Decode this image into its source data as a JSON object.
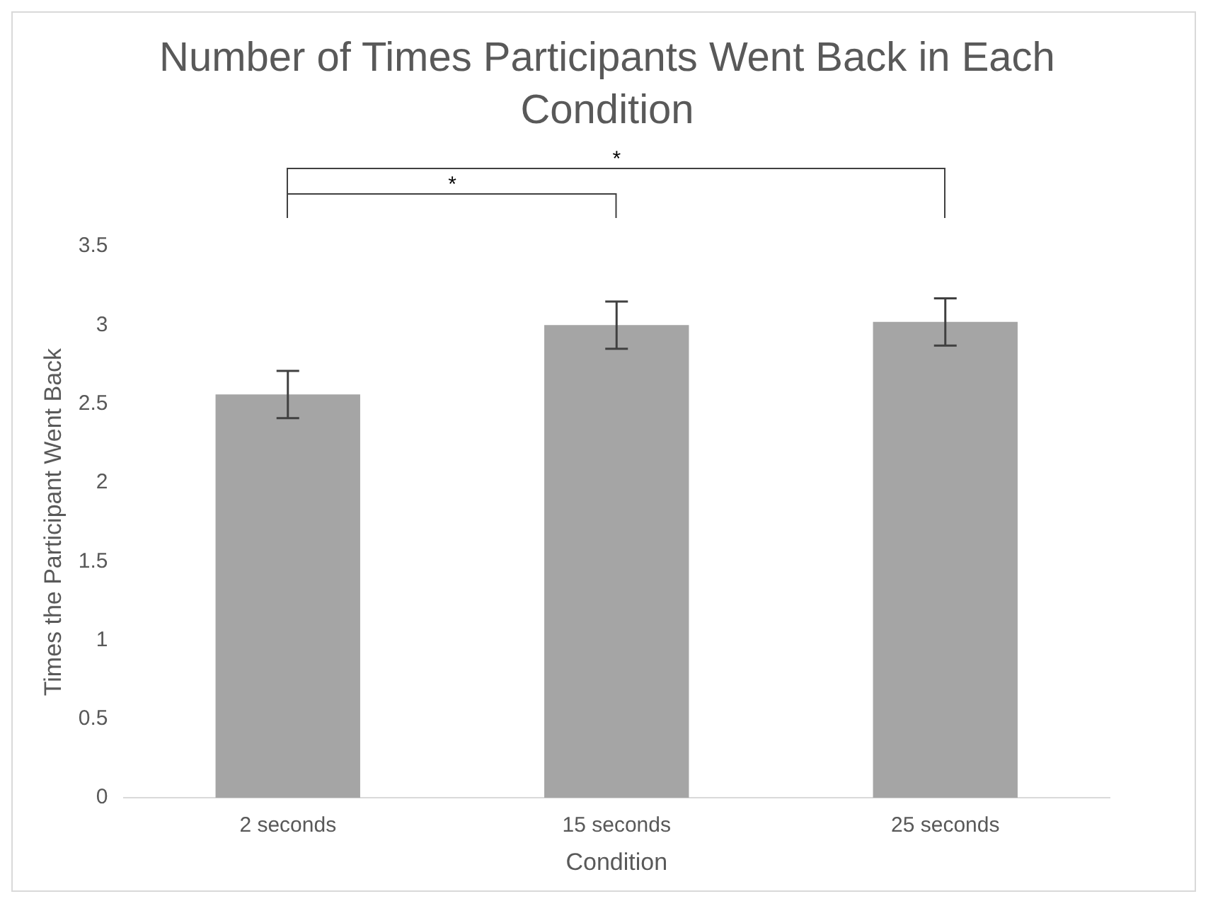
{
  "chart_data": {
    "type": "bar",
    "title": "Number of Times Participants Went Back in Each Condition",
    "xlabel": "Condition",
    "ylabel": "Times the Participant Went Back",
    "categories": [
      "2 seconds",
      "15 seconds",
      "25 seconds"
    ],
    "values": [
      2.56,
      3.0,
      3.02
    ],
    "color": "#a5a5a5",
    "errors": [
      0.15,
      0.15,
      0.15
    ],
    "ylim": [
      0,
      3.5
    ],
    "yticks": [
      0,
      0.5,
      1,
      1.5,
      2,
      2.5,
      3,
      3.5
    ],
    "grid": false,
    "annotations": [
      "*",
      "*"
    ]
  }
}
